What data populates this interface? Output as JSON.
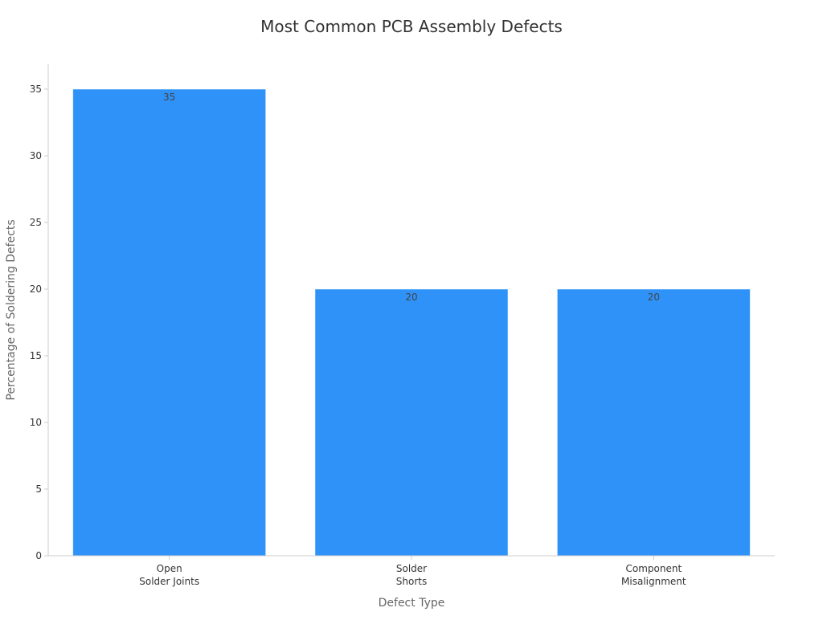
{
  "chart_data": {
    "type": "bar",
    "title": "Most Common PCB Assembly Defects",
    "xlabel": "Defect Type",
    "ylabel": "Percentage of Soldering Defects",
    "categories": [
      [
        "Open",
        "Solder Joints"
      ],
      [
        "Solder",
        "Shorts"
      ],
      [
        "Component",
        "Misalignment"
      ]
    ],
    "values": [
      35,
      20,
      20
    ],
    "data_labels": [
      "35",
      "20",
      "20"
    ],
    "ylim": [
      0,
      37
    ],
    "yticks": [
      0,
      5,
      10,
      15,
      20,
      25,
      30,
      35
    ],
    "grid": false,
    "legend": "none",
    "bar_color": "#2f92f8"
  }
}
